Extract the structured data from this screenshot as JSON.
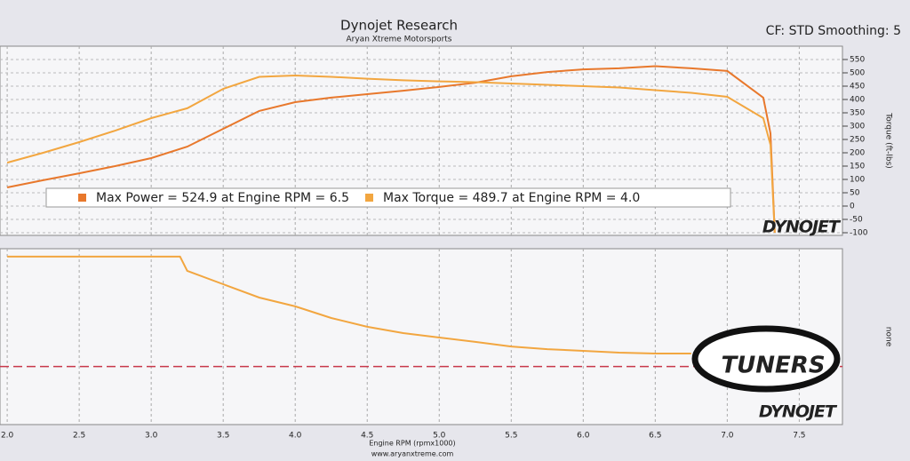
{
  "header": {
    "title": "Dynojet Research",
    "subtitle": "Aryan Xtreme Motorsports",
    "settings": "CF: STD Smoothing: 5"
  },
  "chart_data": [
    {
      "type": "line",
      "y_label": "Torque (ft-lbs)",
      "x": [
        2.0,
        2.25,
        2.5,
        2.75,
        3.0,
        3.25,
        3.5,
        3.75,
        4.0,
        4.25,
        4.5,
        4.75,
        5.0,
        5.25,
        5.5,
        5.75,
        6.0,
        6.25,
        6.5,
        6.75,
        7.0,
        7.25,
        7.3,
        7.33
      ],
      "series": [
        {
          "name": "Max Power = 524.9 at Engine RPM = 6.5",
          "color": "#e8782c",
          "values": [
            70,
            97,
            123,
            150,
            180,
            223,
            290,
            357,
            390,
            407,
            420,
            433,
            447,
            463,
            487,
            503,
            513,
            517,
            525,
            517,
            507,
            407,
            273,
            -100
          ]
        },
        {
          "name": "Max Torque = 489.7 at Engine RPM = 4.0",
          "color": "#f2a640",
          "values": [
            163,
            200,
            240,
            283,
            330,
            367,
            440,
            485,
            490,
            485,
            478,
            472,
            468,
            465,
            460,
            455,
            450,
            445,
            435,
            425,
            410,
            330,
            230,
            -100
          ]
        }
      ],
      "xlim": [
        1.95,
        7.8
      ],
      "xticks": [
        2,
        2.5,
        3,
        3.5,
        4,
        4.5,
        5,
        5.5,
        6,
        6.5,
        7,
        7.5
      ],
      "ylim": [
        -110,
        600
      ],
      "yticks": [
        -100,
        -50,
        0,
        50,
        100,
        150,
        200,
        250,
        300,
        350,
        400,
        450,
        500,
        550
      ],
      "grid": true,
      "logo": "DYNOJET"
    },
    {
      "type": "line",
      "x_label": "Engine RPM (rpmx1000)",
      "y_label": "none",
      "x": [
        2.0,
        2.5,
        3.0,
        3.2,
        3.25,
        3.5,
        3.75,
        4.0,
        4.25,
        4.5,
        4.75,
        5.0,
        5.25,
        5.5,
        5.75,
        6.0,
        6.25,
        6.5,
        6.75
      ],
      "series": [
        {
          "color": "#f2a640",
          "values": [
            95.5,
            95.5,
            95.5,
            95.5,
            87.4,
            79.8,
            72.2,
            67.2,
            60.6,
            55.6,
            52,
            49.5,
            47,
            44.4,
            42.9,
            41.9,
            40.9,
            40.4,
            40.4
          ]
        }
      ],
      "reference_line": {
        "value": 33,
        "color": "#c8384a"
      },
      "xlim": [
        1.95,
        7.8
      ],
      "xticks": [
        {
          "value": 2,
          "label": "2.0"
        },
        2.5,
        {
          "value": 3,
          "label": "3.0"
        },
        3.5,
        {
          "value": 4,
          "label": "4.0"
        },
        4.5,
        {
          "value": 5,
          "label": "5.0"
        },
        5.5,
        {
          "value": 6,
          "label": "6.0"
        },
        6.5,
        {
          "value": 7,
          "label": "7.0"
        },
        7.5
      ],
      "ylim": [
        0,
        100
      ],
      "grid": true,
      "logos": [
        "TUNERS",
        "DYNOJET"
      ]
    }
  ],
  "footer": "www.aryanxtreme.com"
}
